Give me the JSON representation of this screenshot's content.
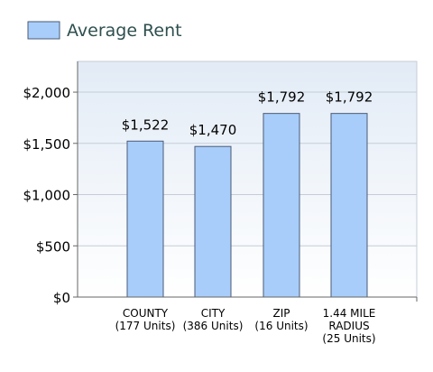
{
  "chart_data": {
    "type": "bar",
    "legend": {
      "label": "Average Rent",
      "position": "top-left"
    },
    "categories": [
      [
        "COUNTY",
        "(177 Units)"
      ],
      [
        "CITY",
        "(386 Units)"
      ],
      [
        "ZIP",
        "(16 Units)"
      ],
      [
        "1.44 MILE",
        "RADIUS",
        "(25 Units)"
      ]
    ],
    "series": [
      {
        "name": "Average Rent",
        "values": [
          1522,
          1470,
          1792,
          1792
        ]
      }
    ],
    "value_labels": [
      "$1,522",
      "$1,470",
      "$1,792",
      "$1,792"
    ],
    "y_ticks": [
      0,
      500,
      1000,
      1500,
      2000
    ],
    "y_tick_labels": [
      "$0",
      "$500",
      "$1,000",
      "$1,500",
      "$2,000"
    ],
    "ylim": [
      0,
      2300
    ],
    "grid": {
      "horizontal": true,
      "vertical": false
    },
    "colors": {
      "bar_fill": "#a8cdfb",
      "bar_stroke": "#4a5a75",
      "plot_bg_top": "#e2ebf6",
      "plot_bg_bottom": "#ffffff",
      "grid": "#c5cdd8",
      "axis": "#666666",
      "legend_text": "#2f4f4f",
      "text": "#000000"
    }
  }
}
